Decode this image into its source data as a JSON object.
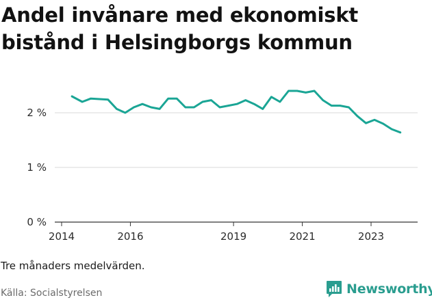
{
  "title": "Andel invånare med ekonomiskt bistånd i Helsingborgs kommun",
  "note": "Tre månaders medelvärden.",
  "source": "Källa: Socialstyrelsen",
  "brand": {
    "name": "Newsworthy",
    "icon": "newsworthy-logo-icon",
    "color": "#2a9d8f"
  },
  "chart_data": {
    "type": "line",
    "title": "Andel invånare med ekonomiskt bistånd i Helsingborgs kommun",
    "xlabel": "",
    "ylabel": "",
    "x_ticks": [
      "2014",
      "2016",
      "2019",
      "2021",
      "2023"
    ],
    "x_tick_values": [
      2014,
      2016,
      2019,
      2021,
      2023
    ],
    "y_ticks": [
      "0 %",
      "1 %",
      "2 %"
    ],
    "y_tick_values": [
      0,
      1,
      2
    ],
    "xlim": [
      2014,
      2027
    ],
    "ylim": [
      0,
      2.5
    ],
    "grid": true,
    "color": "#1aa595",
    "series": [
      {
        "x": [
          2014.3,
          2014.6,
          2014.85,
          2015.1,
          2015.35,
          2015.6,
          2015.85,
          2016.1,
          2016.35,
          2016.6,
          2016.85,
          2017.1,
          2017.35,
          2017.6,
          2017.85,
          2018.1,
          2018.35,
          2018.6,
          2018.85,
          2019.1,
          2019.35,
          2019.6,
          2019.85,
          2020.1,
          2020.35,
          2020.6,
          2020.85,
          2021.1,
          2021.35,
          2021.6,
          2021.85,
          2022.1,
          2022.35,
          2022.6,
          2022.85,
          2023.1,
          2023.35,
          2023.6,
          2023.85
        ],
        "values": [
          2.3,
          2.2,
          2.26,
          2.25,
          2.24,
          2.07,
          2.0,
          2.1,
          2.16,
          2.1,
          2.07,
          2.26,
          2.26,
          2.1,
          2.1,
          2.2,
          2.23,
          2.1,
          2.13,
          2.16,
          2.23,
          2.16,
          2.07,
          2.29,
          2.2,
          2.4,
          2.4,
          2.37,
          2.4,
          2.23,
          2.13,
          2.13,
          2.1,
          1.94,
          1.81,
          1.87,
          1.8,
          1.7,
          1.64
        ]
      }
    ]
  }
}
